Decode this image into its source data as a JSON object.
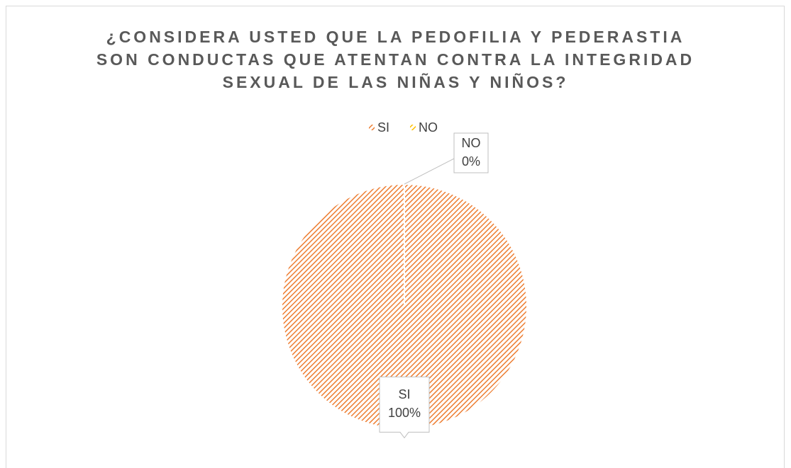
{
  "chart_data": {
    "type": "pie",
    "title": "¿CONSIDERA USTED QUE LA PEDOFILIA Y PEDERASTIA SON CONDUCTAS QUE ATENTAN CONTRA LA INTEGRIDAD SEXUAL DE LAS NIÑAS Y NIÑOS?",
    "categories": [
      "SI",
      "NO"
    ],
    "values": [
      100,
      0
    ],
    "value_labels": [
      "100%",
      "0%"
    ],
    "colors": [
      "#ED7D31",
      "#FFC000"
    ],
    "legend": "top"
  }
}
